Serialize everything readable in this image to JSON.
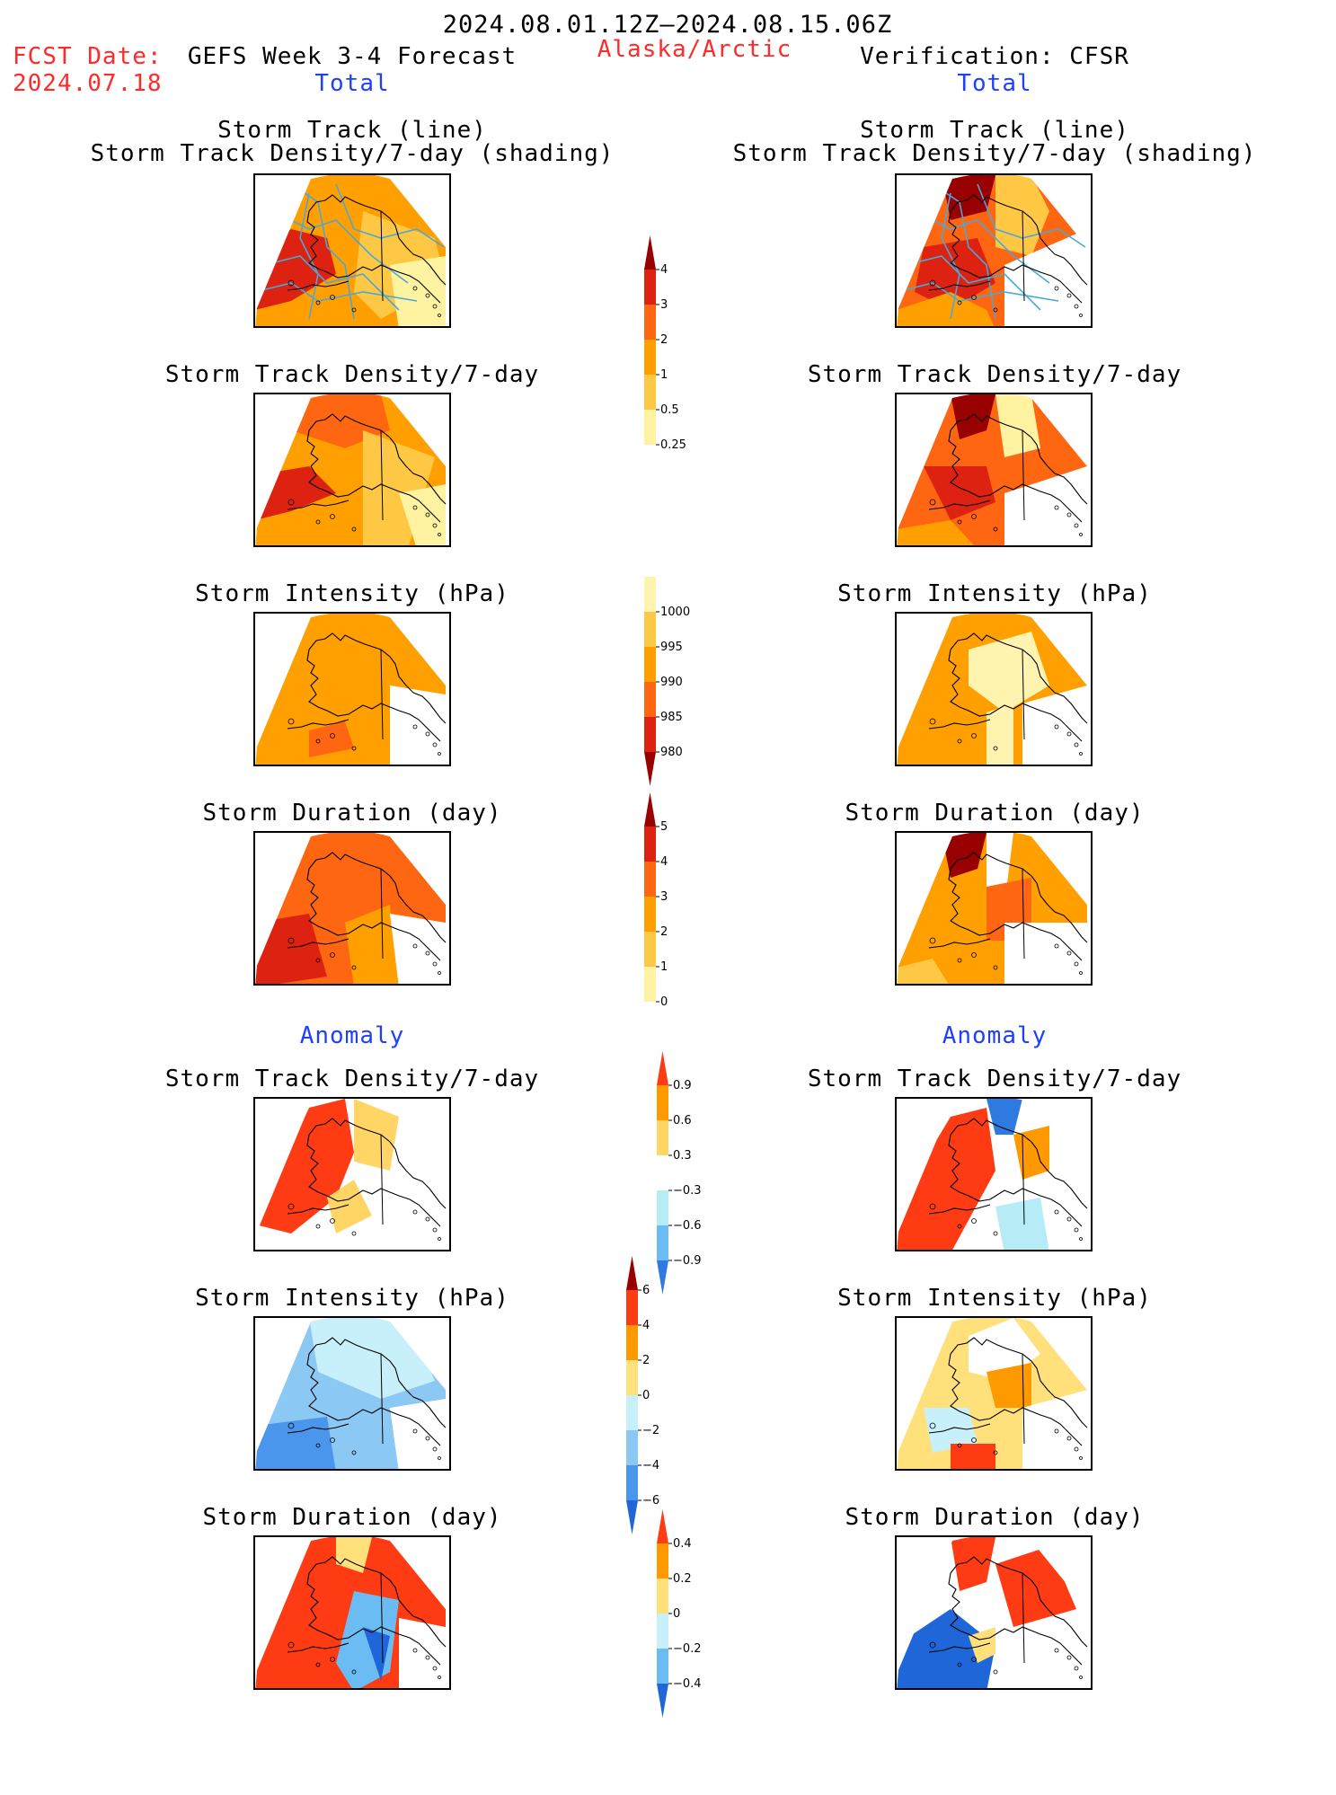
{
  "header": {
    "date_range": "2024.08.01.12Z–2024.08.15.06Z",
    "fcst_label": "FCST Date:",
    "fcst_date": "2024.07.18",
    "forecast_title": "GEFS Week 3-4 Forecast",
    "region": "Alaska/Arctic",
    "verification_title": "Verification: CFSR",
    "total_left": "Total",
    "total_right": "Total",
    "anomaly_left": "Anomaly",
    "anomaly_right": "Anomaly"
  },
  "colors": {
    "accent_red": "#ff2a2a",
    "accent_blue": "#1f3fff",
    "track_line": "#4aa8d8"
  },
  "chart_data": [
    {
      "type": "heatmap",
      "id": "fc-track",
      "title_line1": "Storm Track (line)",
      "title_line2": "Storm Track Density/7-day (shading)",
      "source": "forecast",
      "scale": "density"
    },
    {
      "type": "heatmap",
      "id": "obs-track",
      "title_line1": "Storm Track (line)",
      "title_line2": "Storm Track Density/7-day (shading)",
      "source": "verification",
      "scale": "density"
    },
    {
      "type": "heatmap",
      "id": "fc-dens",
      "title": "Storm Track Density/7-day",
      "source": "forecast",
      "scale": "density"
    },
    {
      "type": "heatmap",
      "id": "obs-dens",
      "title": "Storm Track Density/7-day",
      "source": "verification",
      "scale": "density"
    },
    {
      "type": "heatmap",
      "id": "fc-int",
      "title": "Storm Intensity (hPa)",
      "source": "forecast",
      "scale": "intensity"
    },
    {
      "type": "heatmap",
      "id": "obs-int",
      "title": "Storm Intensity (hPa)",
      "source": "verification",
      "scale": "intensity"
    },
    {
      "type": "heatmap",
      "id": "fc-dur",
      "title": "Storm Duration (day)",
      "source": "forecast",
      "scale": "duration"
    },
    {
      "type": "heatmap",
      "id": "obs-dur",
      "title": "Storm Duration (day)",
      "source": "verification",
      "scale": "duration"
    },
    {
      "type": "heatmap",
      "id": "fc-adens",
      "title": "Storm Track Density/7-day",
      "source": "forecast",
      "scale": "anom_density"
    },
    {
      "type": "heatmap",
      "id": "obs-adens",
      "title": "Storm Track Density/7-day",
      "source": "verification",
      "scale": "anom_density"
    },
    {
      "type": "heatmap",
      "id": "fc-aint",
      "title": "Storm Intensity (hPa)",
      "source": "forecast",
      "scale": "anom_intensity"
    },
    {
      "type": "heatmap",
      "id": "obs-aint",
      "title": "Storm Intensity (hPa)",
      "source": "verification",
      "scale": "anom_intensity"
    },
    {
      "type": "heatmap",
      "id": "fc-adur",
      "title": "Storm Duration (day)",
      "source": "forecast",
      "scale": "anom_duration"
    },
    {
      "type": "heatmap",
      "id": "obs-adur",
      "title": "Storm Duration (day)",
      "source": "verification",
      "scale": "anom_duration"
    }
  ],
  "colorbars": {
    "density": {
      "labels": [
        "4",
        "3",
        "2",
        "1",
        "0.5",
        "0.25"
      ],
      "colors": [
        "#990000",
        "#dd2211",
        "#ff6611",
        "#ff9f00",
        "#ffc844",
        "#fff2a0"
      ]
    },
    "intensity": {
      "labels": [
        "1000",
        "995",
        "990",
        "985",
        "980"
      ],
      "colors": [
        "#fff3b0",
        "#ffc844",
        "#ff9f00",
        "#ff6611",
        "#dd2211",
        "#990000"
      ]
    },
    "duration": {
      "labels": [
        "5",
        "4",
        "3",
        "2",
        "1",
        "0"
      ],
      "colors": [
        "#990000",
        "#dd2211",
        "#ff6611",
        "#ff9f00",
        "#ffc844",
        "#fff2a0"
      ]
    },
    "anom_density": {
      "labels": [
        "0.9",
        "0.6",
        "0.3",
        "−0.3",
        "−0.6",
        "−0.9"
      ],
      "colors": [
        "#ff3b14",
        "#ff9900",
        "#ffd566",
        "#ffffff",
        "#b5ecf6",
        "#6bbcf2",
        "#2f7ae0"
      ]
    },
    "anom_intensity": {
      "labels": [
        "6",
        "4",
        "2",
        "0",
        "−2",
        "−4",
        "−6"
      ],
      "colors": [
        "#990000",
        "#ff3b14",
        "#ff9900",
        "#ffe07a",
        "#c7f0fa",
        "#8cc8f4",
        "#4a96ec",
        "#1f66d8"
      ]
    },
    "anom_duration": {
      "labels": [
        "0.4",
        "0.2",
        "0",
        "−0.2",
        "−0.4"
      ],
      "colors": [
        "#ff3b14",
        "#ff9900",
        "#ffe07a",
        "#c7f0fa",
        "#6bbcf2",
        "#1f66d8"
      ]
    }
  }
}
